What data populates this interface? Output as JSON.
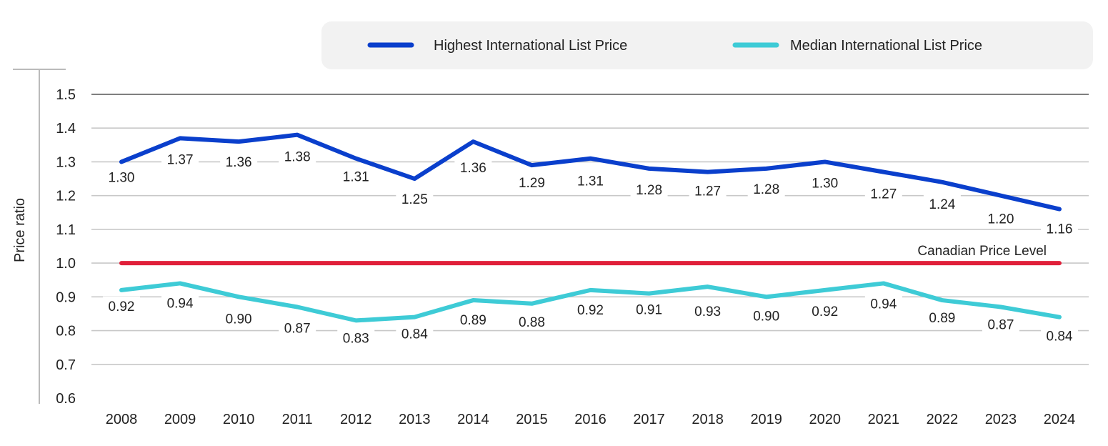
{
  "chart_data": {
    "type": "line",
    "title": "",
    "xlabel": "",
    "ylabel": "Price ratio",
    "ylim": [
      0.6,
      1.5
    ],
    "yticks": [
      "0.6",
      "0.7",
      "0.8",
      "0.9",
      "1.0",
      "1.1",
      "1.2",
      "1.3",
      "1.4",
      "1.5"
    ],
    "categories": [
      "2008",
      "2009",
      "2010",
      "2011",
      "2012",
      "2013",
      "2014",
      "2015",
      "2016",
      "2017",
      "2018",
      "2019",
      "2020",
      "2021",
      "2022",
      "2023",
      "2024"
    ],
    "legend_position": "top",
    "series": [
      {
        "name": "Highest International List Price",
        "color": "#0a3fcc",
        "values": [
          1.3,
          1.37,
          1.36,
          1.38,
          1.31,
          1.25,
          1.36,
          1.29,
          1.31,
          1.28,
          1.27,
          1.28,
          1.3,
          1.27,
          1.24,
          1.2,
          1.16
        ],
        "labels": [
          "1.30",
          "1.37",
          "1.36",
          "1.38",
          "1.31",
          "1.25",
          "1.36",
          "1.29",
          "1.31",
          "1.28",
          "1.27",
          "1.28",
          "1.30",
          "1.27",
          "1.24",
          "1.20",
          "1.16"
        ]
      },
      {
        "name": "Median International List Price",
        "color": "#3ecbd6",
        "values": [
          0.92,
          0.94,
          0.9,
          0.87,
          0.83,
          0.84,
          0.89,
          0.88,
          0.92,
          0.91,
          0.93,
          0.9,
          0.92,
          0.94,
          0.89,
          0.87,
          0.84
        ],
        "labels": [
          "0.92",
          "0.94",
          "0.90",
          "0.87",
          "0.83",
          "0.84",
          "0.89",
          "0.88",
          "0.92",
          "0.91",
          "0.93",
          "0.90",
          "0.92",
          "0.94",
          "0.89",
          "0.87",
          "0.84"
        ]
      }
    ],
    "reference_line": {
      "label": "Canadian Price Level",
      "value": 1.0,
      "color": "#e0203a"
    },
    "gridline_color": "#c8c8c8",
    "top_gridline_color": "#333333"
  }
}
